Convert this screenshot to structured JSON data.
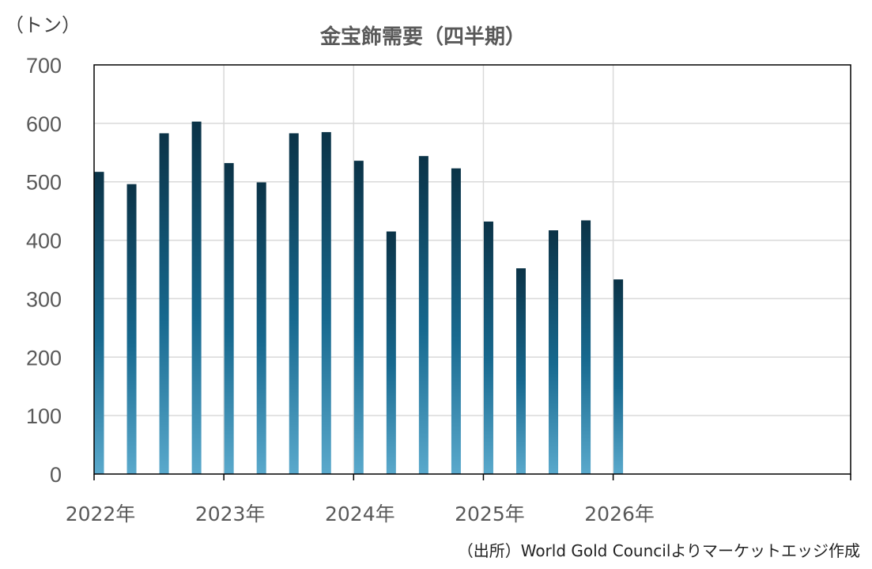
{
  "chart_data": {
    "type": "bar",
    "title": "金宝飾需要（四半期）",
    "ylabel": "（トン）",
    "xlabel": "",
    "source": "（出所）World Gold Councilよりマーケットエッジ作成",
    "ylim": [
      0,
      700
    ],
    "yticks": [
      "0",
      "100",
      "200",
      "300",
      "400",
      "500",
      "600",
      "700"
    ],
    "x_tick_labels": [
      "2022年",
      "2023年",
      "2024年",
      "2025年",
      "2026年"
    ],
    "categories": [
      "2022 Q1",
      "2022 Q2",
      "2022 Q3",
      "2022 Q4",
      "2023 Q1",
      "2023 Q2",
      "2023 Q3",
      "2023 Q4",
      "2024 Q1",
      "2024 Q2",
      "2024 Q3",
      "2024 Q4",
      "2025 Q1",
      "2025 Q2",
      "2025 Q3",
      "2025 Q4",
      "2026 Q1"
    ],
    "values": [
      517,
      496,
      583,
      603,
      532,
      499,
      583,
      585,
      536,
      415,
      544,
      523,
      432,
      352,
      417,
      434,
      333
    ],
    "grid": true,
    "legend": "none",
    "colors": {
      "bar_top": "#0b3347",
      "bar_mid": "#17698f",
      "bar_bottom": "#5aa9cc",
      "grid": "#d9d9d9",
      "axis": "#000000"
    }
  }
}
